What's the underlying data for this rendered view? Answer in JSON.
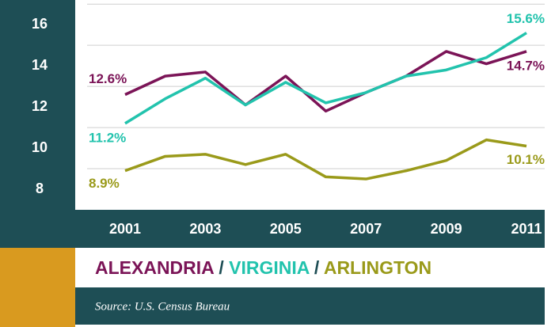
{
  "chart_data": {
    "type": "line",
    "x": [
      2001,
      2002,
      2003,
      2004,
      2005,
      2006,
      2007,
      2008,
      2009,
      2010,
      2011
    ],
    "xlim": [
      2001,
      2011
    ],
    "xticks": [
      2001,
      2003,
      2005,
      2007,
      2009,
      2011
    ],
    "ylim": [
      7,
      17.2
    ],
    "yticks": [
      8,
      10,
      12,
      14,
      16
    ],
    "grid_lines": [
      9,
      11,
      13,
      15,
      17
    ],
    "series": [
      {
        "name": "ALEXANDRIA",
        "color": "#7b1457",
        "values": [
          12.6,
          13.5,
          13.7,
          12.1,
          13.5,
          11.8,
          12.7,
          13.5,
          14.7,
          14.1,
          14.7
        ],
        "value_labels": [
          "12.6%",
          null,
          null,
          null,
          null,
          null,
          null,
          null,
          null,
          null,
          "14.7%"
        ]
      },
      {
        "name": "VIRGINIA",
        "color": "#22c3ad",
        "values": [
          11.2,
          12.4,
          13.4,
          12.1,
          13.2,
          12.2,
          12.7,
          13.5,
          13.8,
          14.4,
          15.6
        ],
        "value_labels": [
          "11.2%",
          null,
          null,
          null,
          null,
          null,
          null,
          null,
          null,
          null,
          "15.6%"
        ]
      },
      {
        "name": "ARLINGTON",
        "color": "#9a9a1a",
        "values": [
          8.9,
          9.6,
          9.7,
          9.2,
          9.7,
          8.6,
          8.5,
          8.9,
          9.4,
          10.4,
          10.1
        ],
        "value_labels": [
          "8.9%",
          null,
          null,
          null,
          null,
          null,
          null,
          null,
          null,
          null,
          "10.1%"
        ]
      }
    ],
    "legend_separator": "/",
    "source": "Source: U.S. Census Bureau"
  }
}
